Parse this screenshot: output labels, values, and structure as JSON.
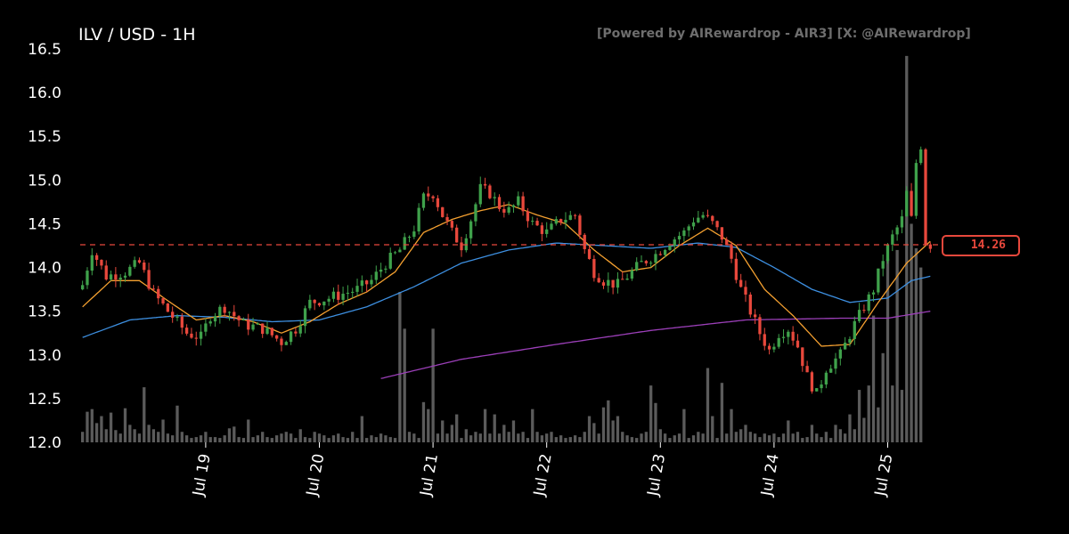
{
  "header": {
    "title": "ILV / USD - 1H",
    "credit": "[Powered by AIRewardrop - AIR3] [X: @AIRewardrop]"
  },
  "colors": {
    "background": "#000000",
    "up": "#3fa14b",
    "down": "#e8483c",
    "volume": "#6b6b6b",
    "ma_fast": "#f4a030",
    "ma_mid": "#3d8fe0",
    "ma_slow": "#9b3fb8",
    "last_price_line": "#e8483c",
    "axis_text": "#ffffff"
  },
  "chart_data": {
    "type": "candlestick",
    "pair": "ILV / USD",
    "interval": "1H",
    "ylim": [
      12.0,
      16.5
    ],
    "yticks": [
      "12.0",
      "12.5",
      "13.0",
      "13.5",
      "14.0",
      "14.5",
      "15.0",
      "15.5",
      "16.0",
      "16.5"
    ],
    "xticks": [
      {
        "label": "Jul 19",
        "hour": 26
      },
      {
        "label": "Jul 20",
        "hour": 50
      },
      {
        "label": "Jul 21",
        "hour": 74
      },
      {
        "label": "Jul 22",
        "hour": 98
      },
      {
        "label": "Jul 23",
        "hour": 122
      },
      {
        "label": "Jul 24",
        "hour": 146
      },
      {
        "label": "Jul 25",
        "hour": 170
      }
    ],
    "last_price": 14.26,
    "last_price_label": "14.26",
    "close_path": [
      [
        0,
        13.8
      ],
      [
        2,
        14.2
      ],
      [
        5,
        13.9
      ],
      [
        9,
        13.95
      ],
      [
        12,
        14.05
      ],
      [
        15,
        13.7
      ],
      [
        18,
        13.5
      ],
      [
        22,
        13.25
      ],
      [
        25,
        13.2
      ],
      [
        27,
        13.45
      ],
      [
        30,
        13.55
      ],
      [
        34,
        13.35
      ],
      [
        38,
        13.3
      ],
      [
        42,
        13.15
      ],
      [
        45,
        13.3
      ],
      [
        48,
        13.6
      ],
      [
        52,
        13.65
      ],
      [
        55,
        13.7
      ],
      [
        58,
        13.75
      ],
      [
        61,
        13.85
      ],
      [
        64,
        14.05
      ],
      [
        67,
        14.2
      ],
      [
        70,
        14.45
      ],
      [
        72,
        14.8
      ],
      [
        74,
        14.85
      ],
      [
        76,
        14.6
      ],
      [
        78,
        14.4
      ],
      [
        80,
        14.25
      ],
      [
        82,
        14.55
      ],
      [
        84,
        14.9
      ],
      [
        86,
        14.85
      ],
      [
        88,
        14.7
      ],
      [
        90,
        14.65
      ],
      [
        92,
        14.75
      ],
      [
        95,
        14.5
      ],
      [
        98,
        14.4
      ],
      [
        101,
        14.55
      ],
      [
        104,
        14.6
      ],
      [
        106,
        14.2
      ],
      [
        108,
        13.95
      ],
      [
        110,
        13.85
      ],
      [
        113,
        13.8
      ],
      [
        115,
        13.9
      ],
      [
        118,
        14.05
      ],
      [
        121,
        14.15
      ],
      [
        124,
        14.3
      ],
      [
        127,
        14.4
      ],
      [
        129,
        14.55
      ],
      [
        131,
        14.6
      ],
      [
        133,
        14.5
      ],
      [
        135,
        14.35
      ],
      [
        137,
        14.1
      ],
      [
        139,
        13.75
      ],
      [
        141,
        13.5
      ],
      [
        143,
        13.25
      ],
      [
        145,
        13.05
      ],
      [
        147,
        13.25
      ],
      [
        149,
        13.3
      ],
      [
        151,
        13.1
      ],
      [
        153,
        12.75
      ],
      [
        155,
        12.55
      ],
      [
        157,
        12.85
      ],
      [
        160,
        13.0
      ],
      [
        163,
        13.35
      ],
      [
        165,
        13.55
      ],
      [
        167,
        13.75
      ],
      [
        169,
        14.1
      ],
      [
        171,
        14.35
      ],
      [
        173,
        14.55
      ],
      [
        174,
        14.85
      ],
      [
        175,
        14.55
      ],
      [
        176,
        15.2
      ],
      [
        177,
        15.4
      ],
      [
        178,
        14.3
      ],
      [
        179,
        14.26
      ]
    ],
    "ma_fast": [
      [
        0,
        13.55
      ],
      [
        6,
        13.85
      ],
      [
        12,
        13.85
      ],
      [
        18,
        13.62
      ],
      [
        24,
        13.4
      ],
      [
        30,
        13.45
      ],
      [
        36,
        13.38
      ],
      [
        42,
        13.25
      ],
      [
        48,
        13.38
      ],
      [
        54,
        13.58
      ],
      [
        60,
        13.72
      ],
      [
        66,
        13.95
      ],
      [
        72,
        14.4
      ],
      [
        78,
        14.55
      ],
      [
        84,
        14.65
      ],
      [
        90,
        14.72
      ],
      [
        96,
        14.6
      ],
      [
        102,
        14.5
      ],
      [
        108,
        14.2
      ],
      [
        114,
        13.95
      ],
      [
        120,
        14.0
      ],
      [
        126,
        14.25
      ],
      [
        132,
        14.45
      ],
      [
        138,
        14.25
      ],
      [
        144,
        13.75
      ],
      [
        150,
        13.45
      ],
      [
        156,
        13.1
      ],
      [
        162,
        13.12
      ],
      [
        168,
        13.6
      ],
      [
        174,
        14.05
      ],
      [
        179,
        14.3
      ]
    ],
    "ma_mid": [
      [
        0,
        13.2
      ],
      [
        10,
        13.4
      ],
      [
        20,
        13.45
      ],
      [
        30,
        13.43
      ],
      [
        40,
        13.38
      ],
      [
        50,
        13.4
      ],
      [
        60,
        13.55
      ],
      [
        70,
        13.78
      ],
      [
        80,
        14.05
      ],
      [
        90,
        14.2
      ],
      [
        100,
        14.28
      ],
      [
        110,
        14.25
      ],
      [
        120,
        14.22
      ],
      [
        130,
        14.28
      ],
      [
        138,
        14.23
      ],
      [
        146,
        14.0
      ],
      [
        154,
        13.75
      ],
      [
        162,
        13.6
      ],
      [
        170,
        13.65
      ],
      [
        175,
        13.85
      ],
      [
        179,
        13.9
      ]
    ],
    "ma_slow": [
      [
        63,
        12.73
      ],
      [
        80,
        12.95
      ],
      [
        100,
        13.12
      ],
      [
        120,
        13.28
      ],
      [
        140,
        13.4
      ],
      [
        160,
        13.42
      ],
      [
        170,
        13.42
      ],
      [
        179,
        13.5
      ]
    ],
    "volume": [
      [
        0,
        12.12
      ],
      [
        1,
        12.35
      ],
      [
        2,
        12.38
      ],
      [
        3,
        12.22
      ],
      [
        4,
        12.3
      ],
      [
        5,
        12.15
      ],
      [
        6,
        12.34
      ],
      [
        7,
        12.14
      ],
      [
        8,
        12.1
      ],
      [
        9,
        12.39
      ],
      [
        10,
        12.2
      ],
      [
        11,
        12.15
      ],
      [
        12,
        12.1
      ],
      [
        13,
        12.63
      ],
      [
        14,
        12.2
      ],
      [
        15,
        12.15
      ],
      [
        16,
        12.12
      ],
      [
        17,
        12.26
      ],
      [
        18,
        12.1
      ],
      [
        19,
        12.08
      ],
      [
        20,
        12.42
      ],
      [
        21,
        12.12
      ],
      [
        22,
        12.08
      ],
      [
        23,
        12.05
      ],
      [
        24,
        12.06
      ],
      [
        25,
        12.08
      ],
      [
        26,
        12.12
      ],
      [
        27,
        12.06
      ],
      [
        28,
        12.06
      ],
      [
        29,
        12.05
      ],
      [
        30,
        12.08
      ],
      [
        31,
        12.16
      ],
      [
        32,
        12.18
      ],
      [
        33,
        12.06
      ],
      [
        34,
        12.05
      ],
      [
        35,
        12.26
      ],
      [
        36,
        12.06
      ],
      [
        37,
        12.08
      ],
      [
        38,
        12.12
      ],
      [
        39,
        12.06
      ],
      [
        40,
        12.05
      ],
      [
        41,
        12.08
      ],
      [
        42,
        12.1
      ],
      [
        43,
        12.12
      ],
      [
        44,
        12.1
      ],
      [
        45,
        12.05
      ],
      [
        46,
        12.15
      ],
      [
        47,
        12.06
      ],
      [
        48,
        12.05
      ],
      [
        49,
        12.12
      ],
      [
        50,
        12.1
      ],
      [
        51,
        12.08
      ],
      [
        52,
        12.05
      ],
      [
        53,
        12.08
      ],
      [
        54,
        12.1
      ],
      [
        55,
        12.06
      ],
      [
        56,
        12.05
      ],
      [
        57,
        12.12
      ],
      [
        58,
        12.05
      ],
      [
        59,
        12.3
      ],
      [
        60,
        12.05
      ],
      [
        61,
        12.08
      ],
      [
        62,
        12.06
      ],
      [
        63,
        12.1
      ],
      [
        64,
        12.08
      ],
      [
        65,
        12.06
      ],
      [
        66,
        12.05
      ],
      [
        67,
        13.72
      ],
      [
        68,
        13.3
      ],
      [
        69,
        12.12
      ],
      [
        70,
        12.1
      ],
      [
        71,
        12.05
      ],
      [
        72,
        12.46
      ],
      [
        73,
        12.38
      ],
      [
        74,
        13.3
      ],
      [
        75,
        12.1
      ],
      [
        76,
        12.25
      ],
      [
        77,
        12.1
      ],
      [
        78,
        12.2
      ],
      [
        79,
        12.32
      ],
      [
        80,
        12.05
      ],
      [
        81,
        12.15
      ],
      [
        82,
        12.08
      ],
      [
        83,
        12.12
      ],
      [
        84,
        12.1
      ],
      [
        85,
        12.38
      ],
      [
        86,
        12.1
      ],
      [
        87,
        12.32
      ],
      [
        88,
        12.1
      ],
      [
        89,
        12.2
      ],
      [
        90,
        12.12
      ],
      [
        91,
        12.25
      ],
      [
        92,
        12.1
      ],
      [
        93,
        12.12
      ],
      [
        94,
        12.05
      ],
      [
        95,
        12.38
      ],
      [
        96,
        12.12
      ],
      [
        97,
        12.08
      ],
      [
        98,
        12.1
      ],
      [
        99,
        12.12
      ],
      [
        100,
        12.06
      ],
      [
        101,
        12.08
      ],
      [
        102,
        12.05
      ],
      [
        103,
        12.06
      ],
      [
        104,
        12.08
      ],
      [
        105,
        12.06
      ],
      [
        106,
        12.12
      ],
      [
        107,
        12.3
      ],
      [
        108,
        12.22
      ],
      [
        109,
        12.1
      ],
      [
        110,
        12.4
      ],
      [
        111,
        12.48
      ],
      [
        112,
        12.25
      ],
      [
        113,
        12.3
      ],
      [
        114,
        12.12
      ],
      [
        115,
        12.08
      ],
      [
        116,
        12.06
      ],
      [
        117,
        12.05
      ],
      [
        118,
        12.1
      ],
      [
        119,
        12.12
      ],
      [
        120,
        12.65
      ],
      [
        121,
        12.45
      ],
      [
        122,
        12.15
      ],
      [
        123,
        12.1
      ],
      [
        124,
        12.05
      ],
      [
        125,
        12.08
      ],
      [
        126,
        12.1
      ],
      [
        127,
        12.38
      ],
      [
        128,
        12.05
      ],
      [
        129,
        12.08
      ],
      [
        130,
        12.12
      ],
      [
        131,
        12.1
      ],
      [
        132,
        12.85
      ],
      [
        133,
        12.3
      ],
      [
        134,
        12.05
      ],
      [
        135,
        12.68
      ],
      [
        136,
        12.1
      ],
      [
        137,
        12.38
      ],
      [
        138,
        12.12
      ],
      [
        139,
        12.15
      ],
      [
        140,
        12.2
      ],
      [
        141,
        12.12
      ],
      [
        142,
        12.1
      ],
      [
        143,
        12.06
      ],
      [
        144,
        12.1
      ],
      [
        145,
        12.08
      ],
      [
        146,
        12.1
      ],
      [
        147,
        12.06
      ],
      [
        148,
        12.1
      ],
      [
        149,
        12.25
      ],
      [
        150,
        12.1
      ],
      [
        151,
        12.12
      ],
      [
        152,
        12.05
      ],
      [
        153,
        12.06
      ],
      [
        154,
        12.2
      ],
      [
        155,
        12.1
      ],
      [
        156,
        12.06
      ],
      [
        157,
        12.12
      ],
      [
        158,
        12.05
      ],
      [
        159,
        12.2
      ],
      [
        160,
        12.15
      ],
      [
        161,
        12.1
      ],
      [
        162,
        12.32
      ],
      [
        163,
        12.15
      ],
      [
        164,
        12.6
      ],
      [
        165,
        12.28
      ],
      [
        166,
        12.65
      ],
      [
        167,
        13.45
      ],
      [
        168,
        12.4
      ],
      [
        169,
        13.02
      ],
      [
        170,
        14.1
      ],
      [
        171,
        12.65
      ],
      [
        172,
        14.2
      ],
      [
        173,
        12.6
      ],
      [
        174,
        16.42
      ],
      [
        175,
        14.5
      ],
      [
        176,
        14.22
      ],
      [
        177,
        14.0
      ]
    ]
  }
}
